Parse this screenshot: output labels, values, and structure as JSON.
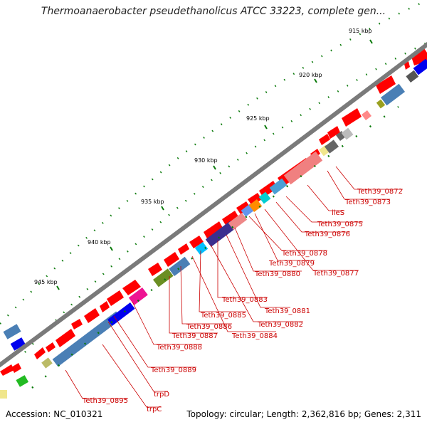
{
  "title": "Thermoanaerobacter pseudethanolicus ATCC 33223, complete gen...",
  "footer": {
    "accession": "Accession: NC_010321",
    "topology": "Topology: circular; Length: 2,362,816 bp; Genes: 2,311"
  },
  "ticks": [
    "915 kbp",
    "920 kbp",
    "925 kbp",
    "930 kbp",
    "935 kbp",
    "940 kbp",
    "945 kbp"
  ],
  "gene_labels": [
    "Teth39_0872",
    "Teth39_0873",
    "ileS",
    "Teth39_0875",
    "Teth39_0876",
    "Teth39_0878",
    "Teth39_0879",
    "Teth39_0880",
    "Teth39_0877",
    "Teth39_0883",
    "Teth39_0881",
    "Teth39_0885",
    "Teth39_0882",
    "Teth39_0886",
    "Teth39_0884",
    "Teth39_0887",
    "Teth39_0888",
    "Teth39_0889",
    "trpD",
    "Teth39_0895",
    "trpC"
  ],
  "colors": {
    "backbone": "#7a7a7a",
    "forward_gene": "#ff0000",
    "label": "#cc0000",
    "tick": "#0a7a0a"
  }
}
